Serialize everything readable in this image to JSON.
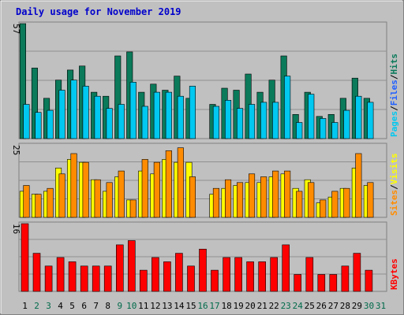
{
  "chart_data": {
    "type": "bar",
    "title": "Daily usage for November 2019",
    "days": [
      "1",
      "2",
      "3",
      "4",
      "5",
      "6",
      "7",
      "8",
      "9",
      "10",
      "11",
      "12",
      "13",
      "14",
      "15",
      "16",
      "17",
      "18",
      "19",
      "20",
      "21",
      "22",
      "23",
      "24",
      "25",
      "26",
      "27",
      "28",
      "29",
      "30",
      "31"
    ],
    "weekend_days": [
      2,
      3,
      9,
      10,
      16,
      17,
      23,
      24,
      30,
      31
    ],
    "colors": {
      "hits": "#0a7a5a",
      "files": "#00c8f0",
      "pages": "#00c8f0",
      "visits": "#ffff00",
      "sites": "#ff8c00",
      "kbytes": "#ff0000",
      "weekend_label": "#006a4a",
      "weekday_label": "#000000",
      "files_label": "#2060ff",
      "separator": "#000000"
    },
    "panels": [
      {
        "id": "pages-files-hits",
        "max_label": "57",
        "ymax": 57,
        "side_labels": [
          {
            "text": "Pages",
            "color": "#00c8f0"
          },
          {
            "text": "/",
            "color": "#000000"
          },
          {
            "text": "Files",
            "color": "#2060ff"
          },
          {
            "text": "/",
            "color": "#000000"
          },
          {
            "text": "Hits",
            "color": "#0a7a5a"
          }
        ],
        "series": [
          {
            "name": "Hits",
            "color": "#0a7a5a",
            "values": [
              57,
              35,
              20,
              29,
              34,
              36,
              23,
              21,
              41,
              43,
              23,
              27,
              24,
              31,
              20,
              0,
              17,
              25,
              24,
              32,
              23,
              29,
              41,
              12,
              23,
              11,
              12,
              20,
              30,
              20,
              0
            ]
          },
          {
            "name": "Files",
            "color": "#00c8f0",
            "values": [
              17,
              13,
              14,
              24,
              29,
              26,
              21,
              15,
              17,
              28,
              16,
              23,
              23,
              21,
              26,
              0,
              16,
              19,
              15,
              17,
              18,
              18,
              31,
              8,
              22,
              10,
              8,
              14,
              21,
              18,
              0
            ]
          }
        ]
      },
      {
        "id": "sites-visits",
        "max_label": "25",
        "ymax": 25,
        "side_labels": [
          {
            "text": "Sites",
            "color": "#ff8c00"
          },
          {
            "text": "/",
            "color": "#000000"
          },
          {
            "text": "Visits",
            "color": "#ffff00"
          }
        ],
        "series": [
          {
            "name": "Visits",
            "color": "#ffff00",
            "values": [
              9,
              8,
              9,
              17,
              20,
              19,
              13,
              9,
              14,
              6,
              16,
              15,
              20,
              19,
              19,
              0,
              8,
              10,
              11,
              12,
              12,
              14,
              15,
              10,
              13,
              5,
              7,
              10,
              17,
              11,
              0
            ]
          },
          {
            "name": "Sites",
            "color": "#ff8c00",
            "values": [
              11,
              8,
              10,
              15,
              22,
              19,
              13,
              12,
              16,
              6,
              20,
              19,
              23,
              24,
              14,
              0,
              10,
              13,
              12,
              15,
              14,
              16,
              16,
              9,
              12,
              6,
              9,
              10,
              22,
              12,
              0
            ]
          }
        ]
      },
      {
        "id": "kbytes",
        "max_label": "16",
        "ymax": 16,
        "side_labels": [
          {
            "text": "KBytes",
            "color": "#ff0000"
          }
        ],
        "series": [
          {
            "name": "KBytes",
            "color": "#ff0000",
            "values": [
              16,
              9,
              6,
              8,
              7,
              6,
              6,
              6,
              11,
              12,
              5,
              8,
              7,
              9,
              6,
              10,
              5,
              8,
              8,
              7,
              7,
              8,
              11,
              4,
              8,
              4,
              4,
              6,
              9,
              5,
              0
            ]
          }
        ]
      }
    ]
  }
}
